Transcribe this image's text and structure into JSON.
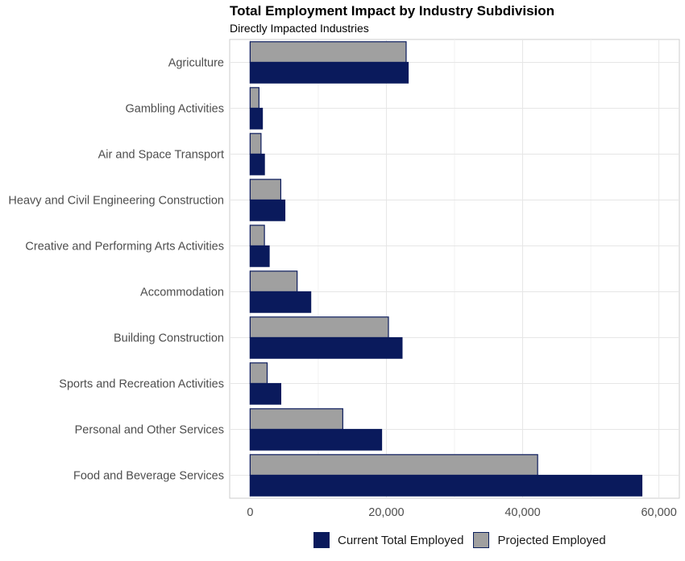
{
  "chart_data": {
    "type": "bar",
    "orientation": "horizontal",
    "title": "Total Employment Impact by Industry Subdivision",
    "subtitle": "Directly Impacted Industries",
    "xlabel": "",
    "ylabel": "",
    "xlim": [
      -3000,
      63000
    ],
    "x_ticks": [
      0,
      20000,
      40000,
      60000
    ],
    "x_tick_labels": [
      "0",
      "20,000",
      "40,000",
      "60,000"
    ],
    "categories": [
      "Agriculture",
      "Gambling Activities",
      "Air and Space Transport",
      "Heavy and Civil Engineering Construction",
      "Creative and Performing Arts Activities",
      "Accommodation",
      "Building Construction",
      "Sports and Recreation Activities",
      "Personal and Other Services",
      "Food and Beverage Services"
    ],
    "series": [
      {
        "name": "Current Total Employed",
        "color": "#0a1a5c",
        "values": [
          23200,
          1800,
          2100,
          5100,
          2800,
          8900,
          22300,
          4500,
          19300,
          57500
        ]
      },
      {
        "name": "Projected Employed",
        "color": "#a0a0a0",
        "values": [
          22900,
          1300,
          1600,
          4500,
          2100,
          6900,
          20300,
          2500,
          13600,
          42200
        ]
      }
    ],
    "grid": true,
    "legend_position": "bottom"
  }
}
